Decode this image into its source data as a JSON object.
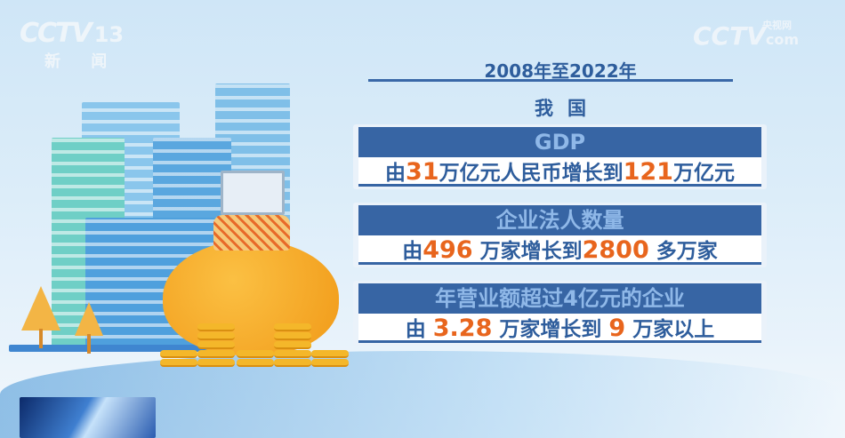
{
  "logo": {
    "brand": "CCTV",
    "channel": "13",
    "channel_name": "新 闻"
  },
  "watermark": {
    "brand": "CCTV",
    "cn": "央视网",
    "suffix": "com"
  },
  "header": {
    "period": "2008年至2022年",
    "subject": "我国"
  },
  "cards": [
    {
      "title": "GDP",
      "prefix": "由",
      "from": "31",
      "mid": "万亿元人民币增长到",
      "to": "121",
      "suffix": "万亿元"
    },
    {
      "title": "企业法人数量",
      "prefix": "由",
      "from": "496",
      "mid": "万家增长到",
      "to": "2800",
      "suffix": "多万家"
    },
    {
      "title": "年营业额超过4亿元的企业",
      "prefix": "由",
      "from": "3.28",
      "mid": "万家增长到",
      "to": "9",
      "suffix": "万家以上"
    }
  ],
  "colors": {
    "header_blue": "#3765a4",
    "text_blue": "#2e5d9c",
    "highlight_orange": "#e8651d",
    "coin_gold": "#f4b72a"
  }
}
